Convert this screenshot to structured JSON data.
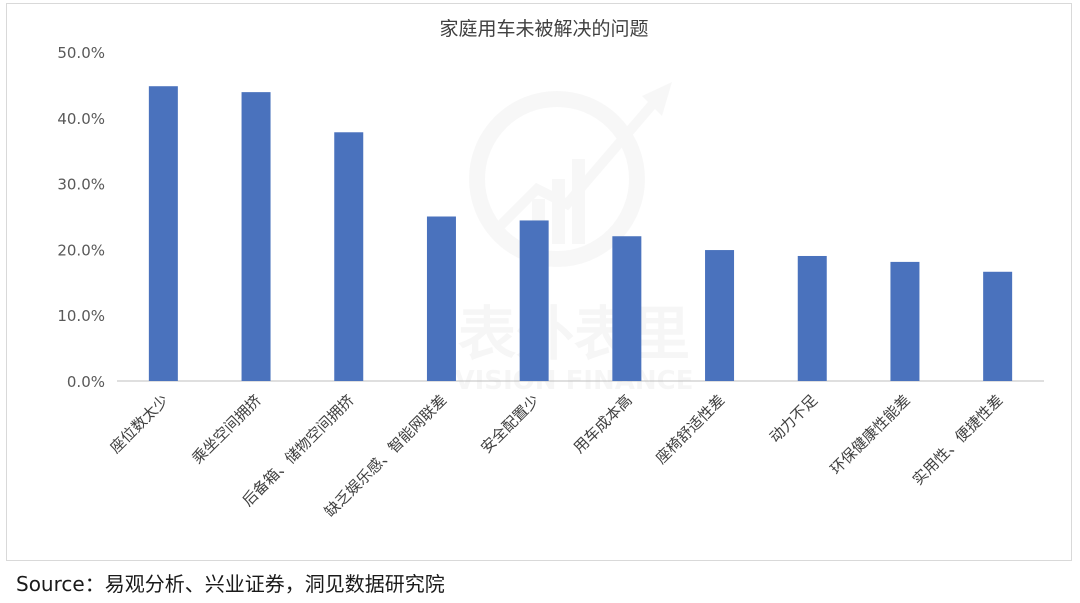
{
  "source_text": "Source：易观分析、兴业证券，洞见数据研究院",
  "watermark": {
    "cn": "表外表里",
    "en": "VISION FINANCE"
  },
  "chart_data": {
    "type": "bar",
    "title": "家庭用车未被解决的问题",
    "xlabel": "",
    "ylabel": "",
    "categories": [
      "座位数太少",
      "乘坐空间拥挤",
      "后备箱、储物空间拥挤",
      "缺乏娱乐感、智能网联差",
      "安全配置少",
      "用车成本高",
      "座椅舒适性差",
      "动力不足",
      "环保健康性能差",
      "实用性、便捷性差"
    ],
    "values": [
      44.8,
      43.9,
      37.8,
      25.0,
      24.4,
      22.0,
      19.9,
      19.0,
      18.1,
      16.6
    ],
    "ylim": [
      0,
      50
    ],
    "yticks": [
      0,
      10,
      20,
      30,
      40,
      50
    ],
    "ytick_labels": [
      "0.0%",
      "10.0%",
      "20.0%",
      "30.0%",
      "40.0%",
      "50.0%"
    ],
    "grid": false,
    "legend": "none",
    "bar_color": "#4a72bd"
  }
}
